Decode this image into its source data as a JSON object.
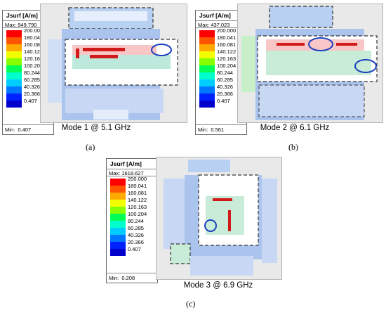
{
  "legend_title": "Jsurf [A/m]",
  "scale_labels": [
    "200.000",
    "180.041",
    "160.081",
    "140.122",
    "120.163",
    "100.204",
    "80.244",
    "60.285",
    "40.326",
    "20.366",
    "0.407"
  ],
  "scale_colors": [
    "#ff0000",
    "#ff5500",
    "#ffaa00",
    "#f2ff00",
    "#88ff00",
    "#00ff55",
    "#00ffcc",
    "#00ccff",
    "#0077ff",
    "#0022ff",
    "#0000cc"
  ],
  "panels": [
    {
      "max_label": "Max: 949.790",
      "min_label": "Min:",
      "min_value": "0.407",
      "caption": "Mode 1 @ 5.1 GHz",
      "label": "(a)"
    },
    {
      "max_label": "Max: 437.023",
      "min_label": "Min:",
      "min_value": "0.561",
      "caption": "Mode 2 @ 6.1 GHz",
      "label": "(b)"
    },
    {
      "max_label": "Max: 1618.627",
      "min_label": "Min:",
      "min_value": "0.208",
      "caption": "Mode 3 @ 6.9 GHz",
      "label": "(c)"
    }
  ]
}
